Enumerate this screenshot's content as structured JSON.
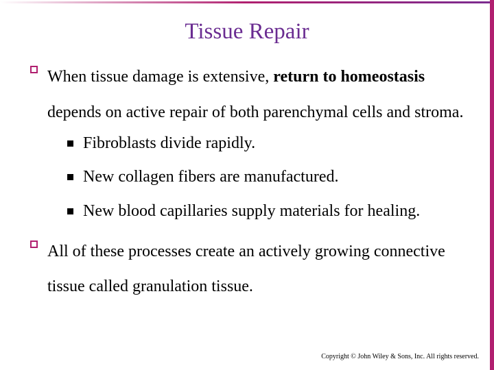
{
  "slide": {
    "title": "Tissue Repair",
    "title_color": "#6a2c91",
    "accent_color": "#b01f6f",
    "bullet_color": "#b01f6f",
    "background_color": "#ffffff",
    "text_color": "#000000",
    "title_fontsize": 33,
    "body_fontsize": 24,
    "sub_fontsize": 24,
    "copyright_fontsize": 10,
    "bullets": [
      {
        "runs": [
          {
            "text": "When tissue damage is extensive, ",
            "bold": false
          },
          {
            "text": "return to homeostasis",
            "bold": true
          },
          {
            "text": " depends on active repair of both parenchymal cells and stroma.",
            "bold": false
          }
        ],
        "subs": [
          "Fibroblasts divide rapidly.",
          "New collagen fibers are manufactured.",
          "New blood capillaries supply materials for healing."
        ]
      },
      {
        "runs": [
          {
            "text": "All of these processes create an actively growing connective tissue called granulation tissue.",
            "bold": false
          }
        ],
        "subs": []
      }
    ],
    "copyright": "Copyright © John Wiley & Sons, Inc. All rights reserved."
  }
}
